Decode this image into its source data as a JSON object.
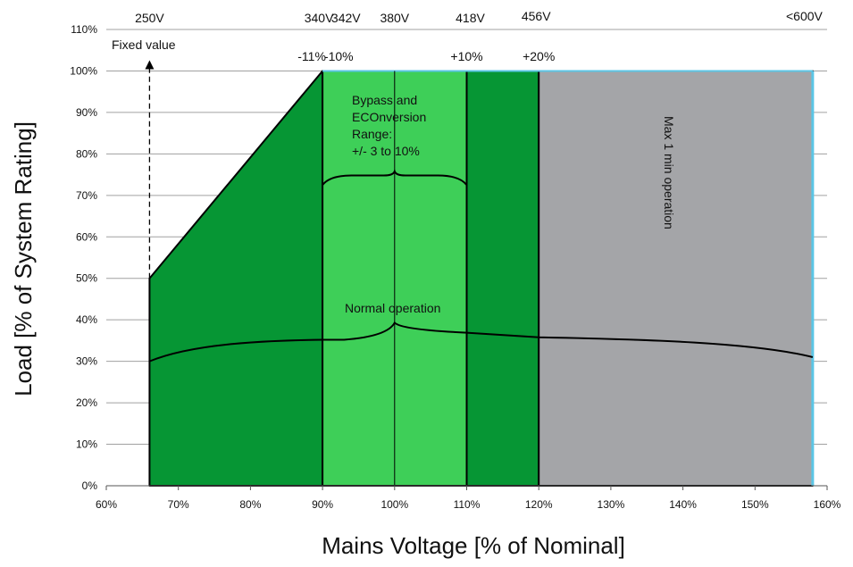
{
  "chart_data": {
    "type": "area",
    "xlabel": "Mains Voltage [% of Nominal]",
    "ylabel": "Load [% of System Rating]",
    "xlim": [
      60,
      160
    ],
    "ylim": [
      0,
      110
    ],
    "x_ticks": [
      "60%",
      "70%",
      "80%",
      "90%",
      "100%",
      "110%",
      "120%",
      "130%",
      "140%",
      "150%",
      "160%"
    ],
    "y_ticks": [
      "0%",
      "10%",
      "20%",
      "30%",
      "40%",
      "50%",
      "60%",
      "70%",
      "80%",
      "90%",
      "100%",
      "110%"
    ],
    "grid": "horizontal",
    "regions": [
      {
        "x": [
          66,
          90
        ],
        "y_start": 50,
        "y_end": 100,
        "color": "#069634",
        "shape": "ramp"
      },
      {
        "x": [
          90,
          110
        ],
        "y": 100,
        "color": "#3ecf58"
      },
      {
        "x": [
          110,
          120
        ],
        "y": 100,
        "color": "#069634"
      },
      {
        "x": [
          120,
          158
        ],
        "y": 100,
        "color": "#a4a5a8",
        "label": "Max 1 min operation"
      }
    ],
    "voltage_labels": [
      {
        "x": 66,
        "text": "250V"
      },
      {
        "x": 90,
        "text": "340V"
      },
      {
        "x": 92.5,
        "text": "342V"
      },
      {
        "x": 100,
        "text": "380V"
      },
      {
        "x": 110,
        "text": "418V"
      },
      {
        "x": 120,
        "text": "456V"
      },
      {
        "x": 158,
        "text": "<600V"
      }
    ],
    "percent_labels": [
      {
        "x": 90,
        "text": "-11%"
      },
      {
        "x": 92.5,
        "text": "-10%"
      },
      {
        "x": 110,
        "text": "+10%"
      },
      {
        "x": 120,
        "text": "+20%"
      }
    ],
    "annotations": {
      "fixed_value": "Fixed value",
      "bypass_lines": [
        "Bypass and",
        "ECOnversion",
        "Range:",
        "+/- 3 to 10%"
      ],
      "normal_operation": "Normal operation",
      "max_operation": "Max 1 min operation"
    },
    "colors": {
      "dark_green": "#069634",
      "light_green": "#3ecf58",
      "grey": "#a4a5a8",
      "edge": "#5bc6e6"
    }
  }
}
